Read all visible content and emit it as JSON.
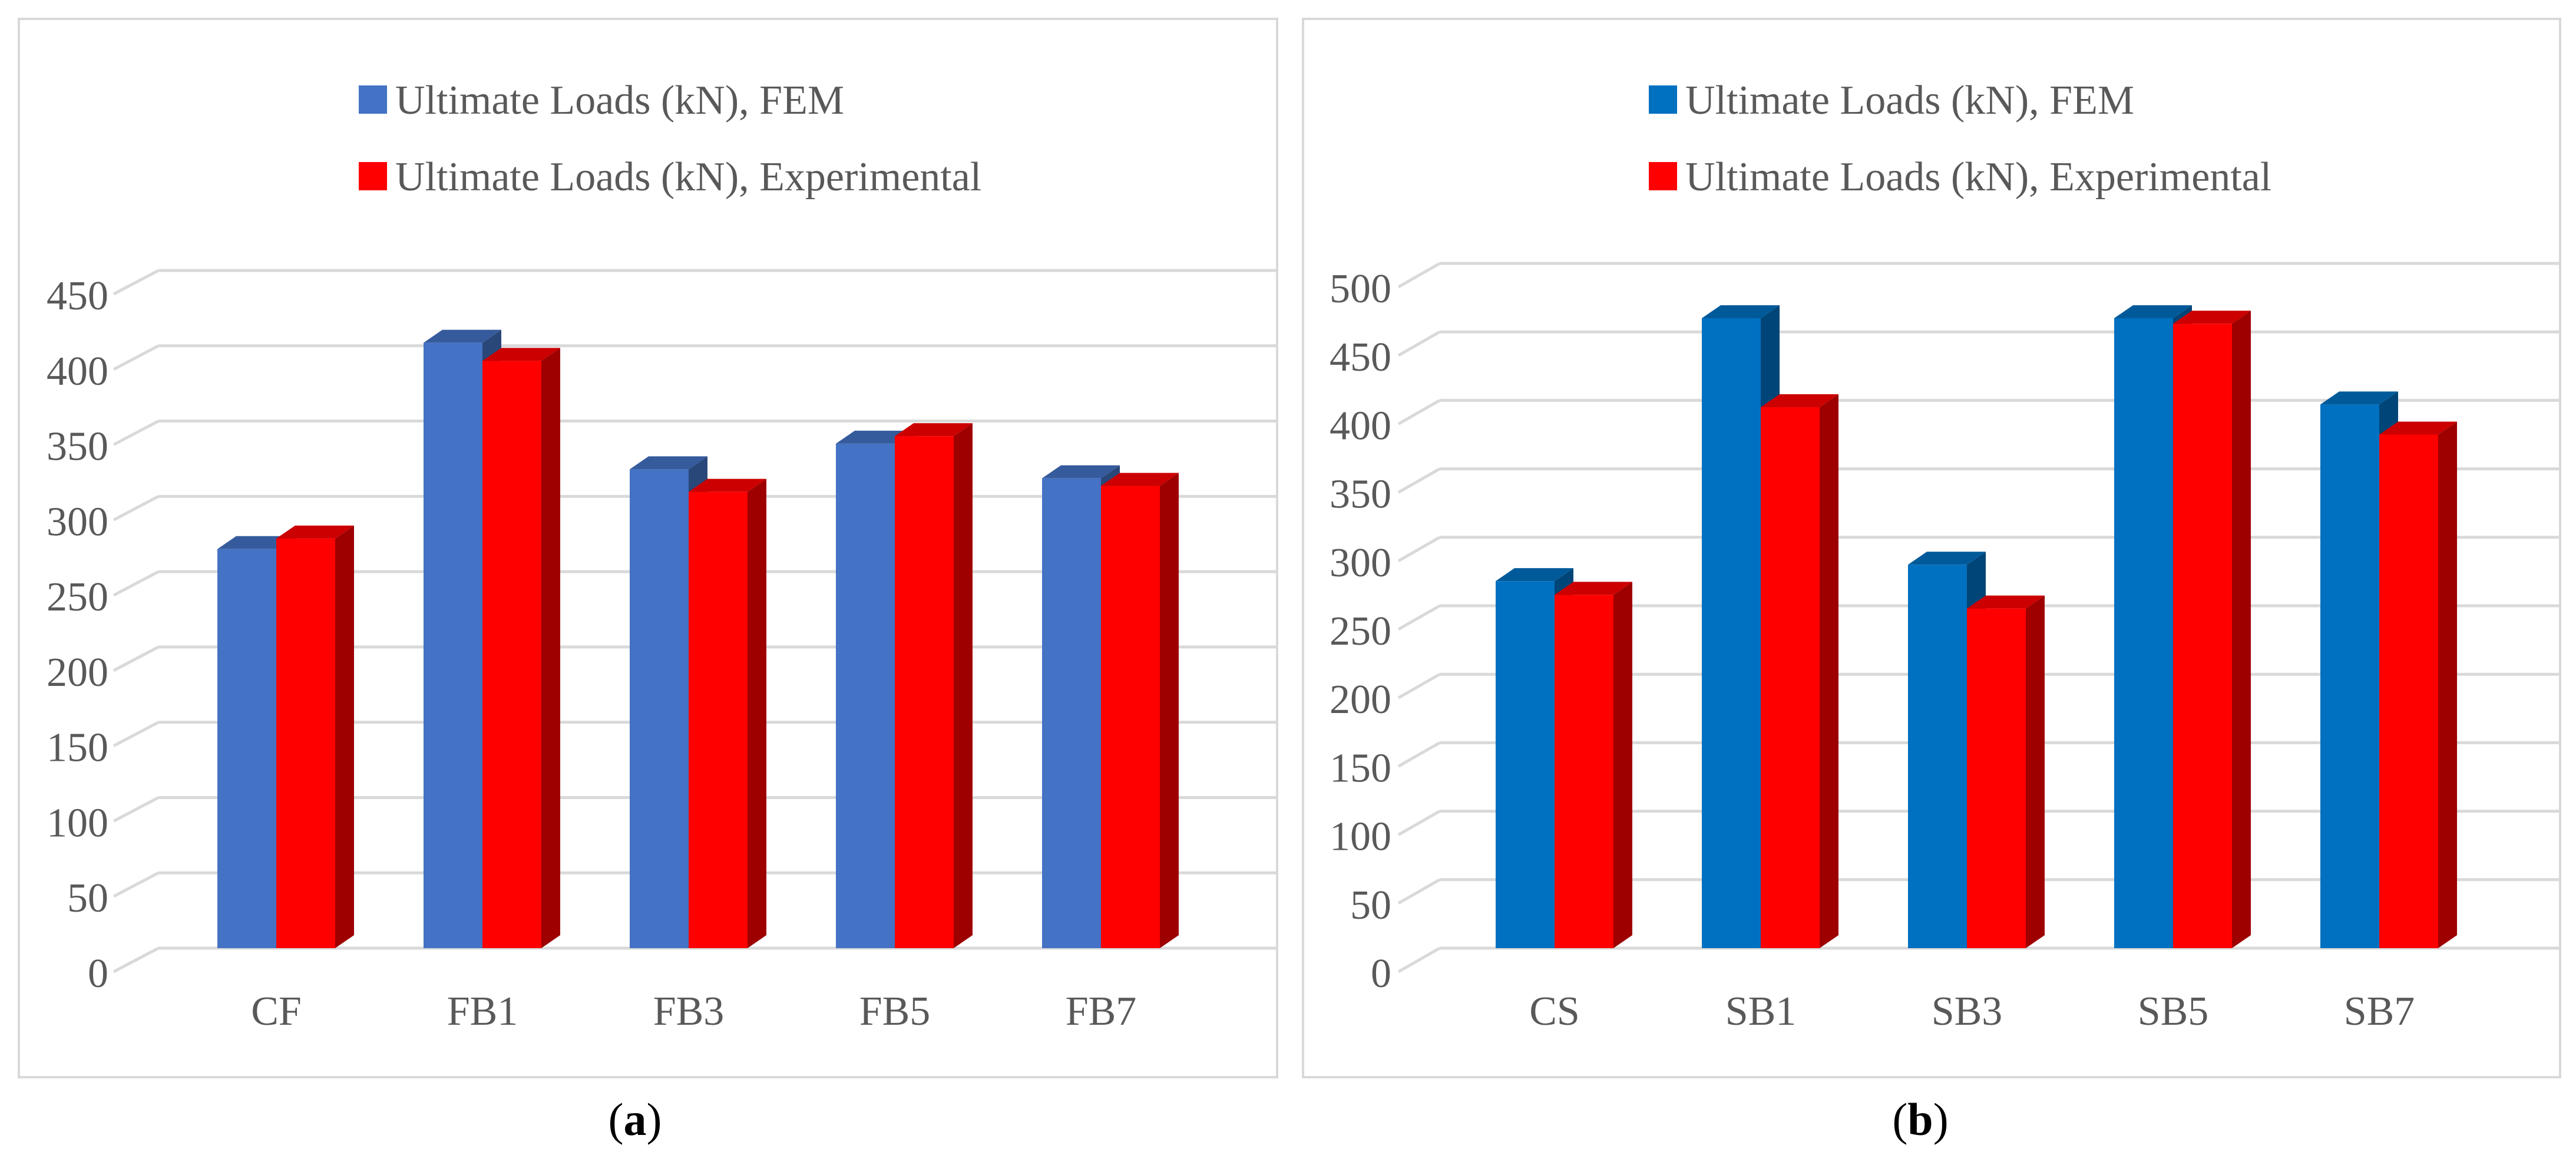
{
  "chart_data": [
    {
      "type": "bar",
      "panel": "a",
      "categories": [
        "CF",
        "FB1",
        "FB3",
        "FB5",
        "FB7"
      ],
      "series": [
        {
          "name": "Ultimate Loads (kN), FEM",
          "values": [
            265,
            402,
            318,
            335,
            312
          ],
          "color": "#4472C4"
        },
        {
          "name": "Ultimate Loads (kN), Experimental",
          "values": [
            272,
            390,
            303,
            340,
            307
          ],
          "color": "#FF0000"
        }
      ],
      "yticks": [
        "0",
        "50",
        "100",
        "150",
        "200",
        "250",
        "300",
        "350",
        "400",
        "450"
      ],
      "ylim": [
        0,
        450
      ],
      "legend_position": "top",
      "grid": true
    },
    {
      "type": "bar",
      "panel": "b",
      "categories": [
        "CS",
        "SB1",
        "SB3",
        "SB5",
        "SB7"
      ],
      "series": [
        {
          "name": "Ultimate Loads (kN), FEM",
          "values": [
            268,
            460,
            280,
            460,
            397
          ],
          "color": "#0070C0"
        },
        {
          "name": "Ultimate Loads (kN), Experimental",
          "values": [
            258,
            395,
            248,
            456,
            375
          ],
          "color": "#FF0000"
        }
      ],
      "yticks": [
        "0",
        "50",
        "100",
        "150",
        "200",
        "250",
        "300",
        "350",
        "400",
        "450",
        "500"
      ],
      "ylim": [
        0,
        500
      ],
      "legend_position": "top",
      "grid": true
    }
  ],
  "captions": {
    "a": {
      "open": "(",
      "letter": "a",
      "close": ")"
    },
    "b": {
      "open": "(",
      "letter": "b",
      "close": ")"
    }
  }
}
